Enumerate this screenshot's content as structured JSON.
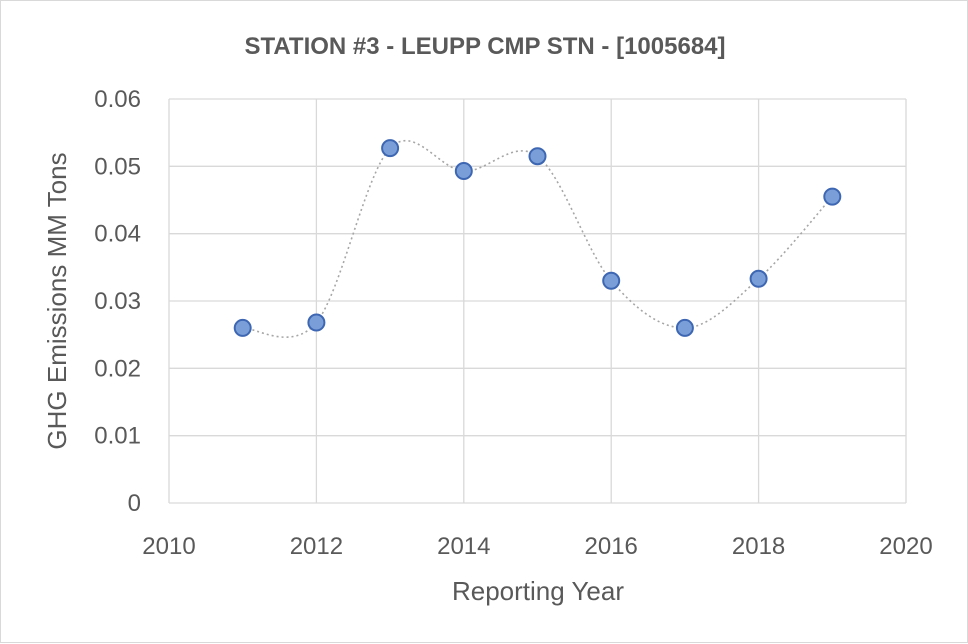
{
  "chart_data": {
    "type": "scatter",
    "title": "STATION #3 - LEUPP CMP STN - [1005684]",
    "xlabel": "Reporting Year",
    "ylabel": "GHG Emissions MM Tons",
    "xlim": [
      2010,
      2020
    ],
    "ylim": [
      0,
      0.06
    ],
    "x_ticks": [
      "2010",
      "2012",
      "2014",
      "2016",
      "2018",
      "2020"
    ],
    "y_ticks": [
      "0",
      "0.01",
      "0.02",
      "0.03",
      "0.04",
      "0.05",
      "0.06"
    ],
    "grid": true,
    "smoothed_line": true,
    "series": [
      {
        "x": [
          2011,
          2012,
          2013,
          2014,
          2015,
          2016,
          2017,
          2018,
          2019
        ],
        "y": [
          0.026,
          0.0268,
          0.0527,
          0.0493,
          0.0515,
          0.033,
          0.026,
          0.0333,
          0.0455
        ]
      }
    ],
    "colors": {
      "marker_fill": "#7a9fd8",
      "marker_stroke": "#3e67b3",
      "line": "#a6a6a6",
      "grid": "#d9d9d9",
      "text": "#595959"
    }
  }
}
